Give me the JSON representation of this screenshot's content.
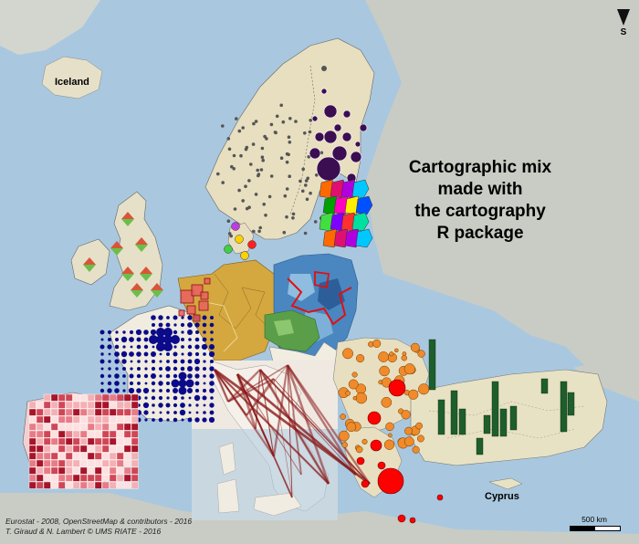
{
  "title": "Cartographic mix\nmade with\nthe cartography\nR package",
  "title_lines": [
    "Cartographic mix",
    "made with",
    "the cartography",
    "R package"
  ],
  "labels": {
    "iceland": "Iceland",
    "cyprus": "Cyprus"
  },
  "credits": {
    "line1": "Eurostat - 2008, OpenStreetMap & contributors - 2016",
    "line2": "T. Giraud & N. Lambert © UMS RIATE - 2016"
  },
  "scale_bar": {
    "label": "500 km"
  },
  "north_arrow": {
    "letter": "S"
  },
  "colors": {
    "sea": "#a9c8df",
    "land": "#e6e0c8",
    "land_grey": "#c9ccc4",
    "sweden_land": "#e8dfc0",
    "baltic_bubbles": "#3b0e52",
    "germany": "#d4a83f",
    "poland_blues": "#4a86c0",
    "france_dots": "#0a0a8a",
    "spain_grid": "#b8243a",
    "benelux_squares": "#e86060",
    "greek_bubbles": "#ff0000",
    "balkans_bubbles": "#f08a2a",
    "turkey_bars": "#1e5e2c",
    "uk_symbols_up": "#d9553a",
    "uk_symbols_down": "#6abf4b",
    "italy_flows": "#8b1a1a"
  }
}
